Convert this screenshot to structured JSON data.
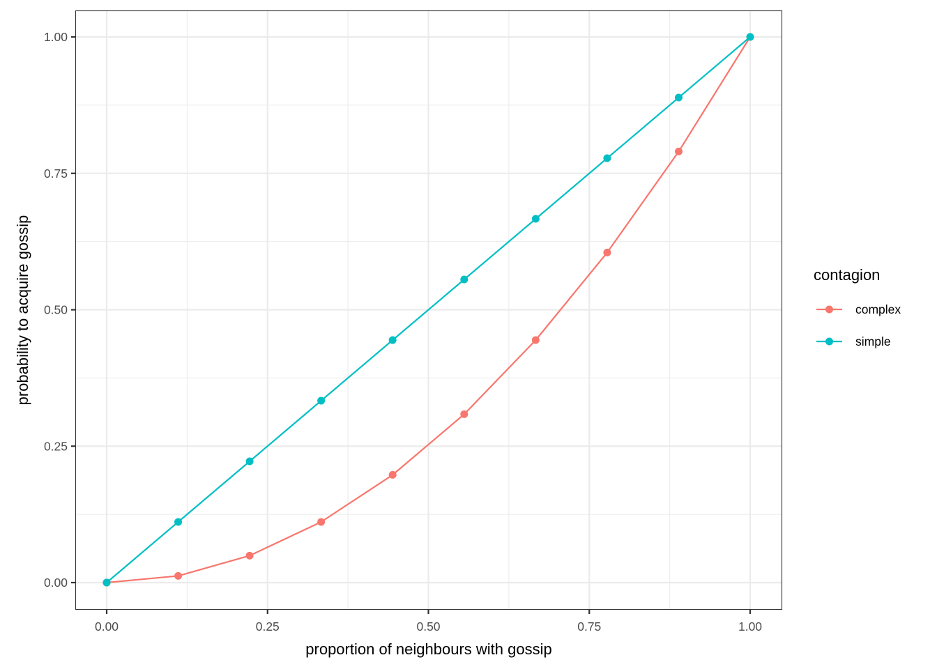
{
  "chart_data": {
    "type": "line",
    "title": "",
    "xlabel": "proportion of neighbours with gossip",
    "ylabel": "probability to acquire gossip",
    "xlim": [
      0,
      1
    ],
    "ylim": [
      0,
      1
    ],
    "grid": true,
    "theme": "bw",
    "x": [
      0,
      0.1111,
      0.2222,
      0.3333,
      0.4444,
      0.5556,
      0.6667,
      0.7778,
      0.8889,
      1.0
    ],
    "x_ticks": [
      0,
      0.25,
      0.5,
      0.75,
      1.0
    ],
    "x_tick_labels": [
      "0.00",
      "0.25",
      "0.50",
      "0.75",
      "1.00"
    ],
    "y_ticks": [
      0,
      0.25,
      0.5,
      0.75,
      1.0
    ],
    "y_tick_labels": [
      "0.00",
      "0.25",
      "0.50",
      "0.75",
      "1.00"
    ],
    "legend": {
      "title": "contagion",
      "position": "right",
      "entries": [
        "complex",
        "simple"
      ]
    },
    "series": [
      {
        "name": "complex",
        "color": "#F8766D",
        "values": [
          0,
          0.0123,
          0.0494,
          0.1111,
          0.1975,
          0.3086,
          0.4444,
          0.6049,
          0.7901,
          1.0
        ]
      },
      {
        "name": "simple",
        "color": "#00BFC4",
        "values": [
          0,
          0.1111,
          0.2222,
          0.3333,
          0.4444,
          0.5556,
          0.6667,
          0.7778,
          0.8889,
          1.0
        ]
      }
    ]
  }
}
